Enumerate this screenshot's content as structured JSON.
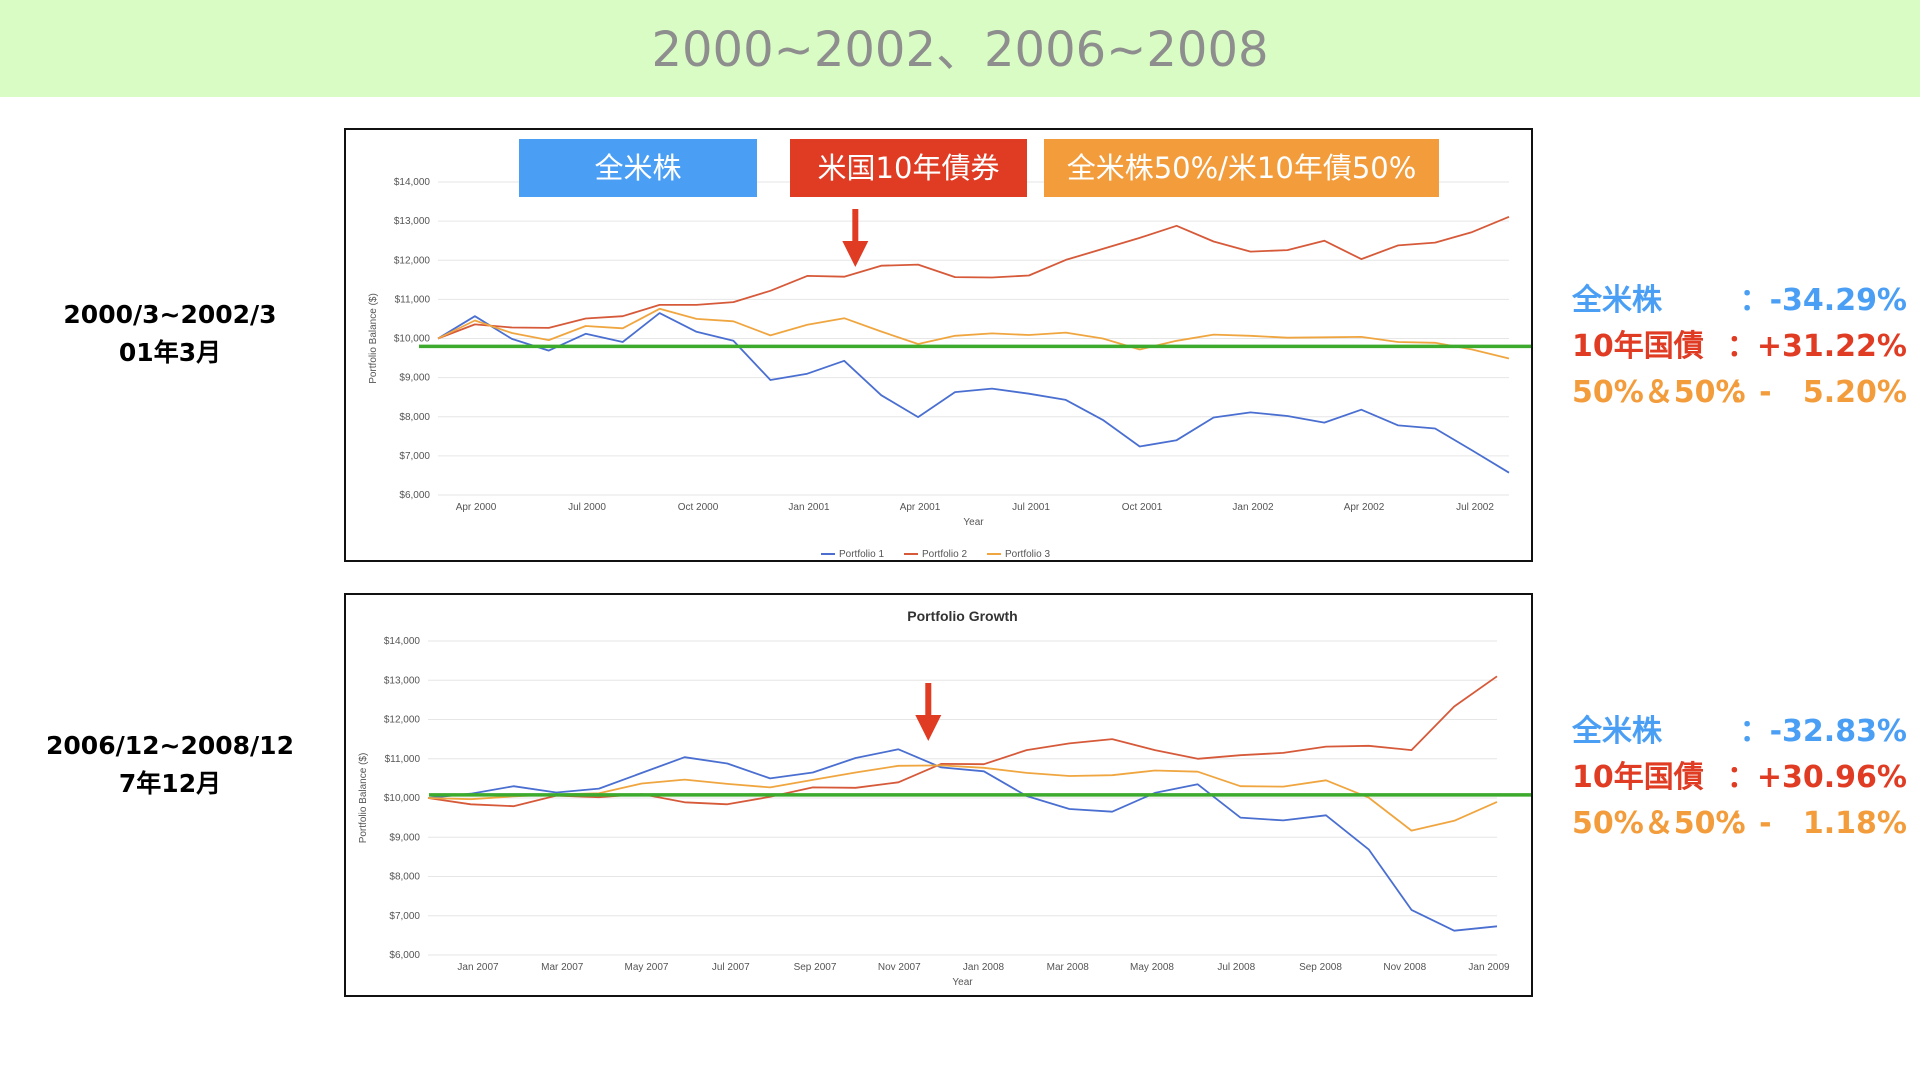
{
  "page": {
    "title": "2000~2002、2006~2008"
  },
  "colors": {
    "banner_bg": "#d9fcc5",
    "stock_blue": "#4a9ff5",
    "bond_red": "#e03c24",
    "mix_orange": "#f39c3b",
    "baseline_green": "#3caa2c",
    "line1": "#4a6fd1",
    "line2": "#d65a3a",
    "line3": "#f0a640"
  },
  "legend_boxes": [
    {
      "label": "全米株",
      "color": "#4a9ff5"
    },
    {
      "label": "米国10年債券",
      "color": "#e03c24"
    },
    {
      "label": "全米株50%/米10年債50%",
      "color": "#f39c3b"
    }
  ],
  "periods": [
    {
      "line1": "2000/3~2002/3",
      "line2": "01年3月"
    },
    {
      "line1": "2006/12~2008/12",
      "line2": "7年12月"
    }
  ],
  "stats": [
    [
      {
        "label": "全米株",
        "value": "：-34.29%",
        "color": "#4a9ff5"
      },
      {
        "label": "10年国債",
        "value": "：+31.22%",
        "color": "#e03c24"
      },
      {
        "label": "50%＆50%",
        "value": "：-   5.20%",
        "color": "#f39c3b"
      }
    ],
    [
      {
        "label": "全米株",
        "value": "：-32.83%",
        "color": "#4a9ff5"
      },
      {
        "label": "10年国債",
        "value": "：+30.96%",
        "color": "#e03c24"
      },
      {
        "label": "50%＆50%",
        "value": "：-   1.18%",
        "color": "#f39c3b"
      }
    ]
  ],
  "chart_data": [
    {
      "type": "line",
      "title": "",
      "xlabel": "Year",
      "ylabel": "Portfolio Balance ($)",
      "ylim": [
        6000,
        14000
      ],
      "yticks": [
        "$6,000",
        "$7,000",
        "$8,000",
        "$9,000",
        "$10,000",
        "$11,000",
        "$12,000",
        "$13,000",
        "$14,000"
      ],
      "xticks": [
        "Apr 2000",
        "Jul 2000",
        "Oct 2000",
        "Jan 2001",
        "Apr 2001",
        "Jul 2001",
        "Oct 2001",
        "Jan 2002",
        "Apr 2002",
        "Jul 2002"
      ],
      "legend": [
        "Portfolio 1",
        "Portfolio 2",
        "Portfolio 3"
      ],
      "baseline": 9800,
      "arrow_x": 11.3,
      "series": [
        {
          "name": "Portfolio 1",
          "values": [
            10000,
            10570,
            9990,
            9690,
            10120,
            9910,
            10650,
            10170,
            9940,
            8940,
            9100,
            9430,
            8550,
            7990,
            8630,
            8720,
            8590,
            8430,
            7920,
            7240,
            7400,
            7980,
            8110,
            8020,
            7850,
            8180,
            7780,
            7700,
            7140,
            6570
          ]
        },
        {
          "name": "Portfolio 2",
          "values": [
            10000,
            10360,
            10280,
            10270,
            10510,
            10570,
            10860,
            10860,
            10930,
            11220,
            11600,
            11580,
            11860,
            11890,
            11570,
            11560,
            11610,
            12010,
            12290,
            12570,
            12880,
            12480,
            12220,
            12260,
            12500,
            12030,
            12380,
            12450,
            12720,
            13110
          ]
        },
        {
          "name": "Portfolio 3",
          "values": [
            10000,
            10460,
            10140,
            9960,
            10320,
            10260,
            10760,
            10500,
            10440,
            10080,
            10350,
            10520,
            10180,
            9860,
            10070,
            10130,
            10090,
            10150,
            10000,
            9720,
            9940,
            10100,
            10070,
            10020,
            10030,
            10040,
            9910,
            9890,
            9720,
            9490
          ]
        }
      ]
    },
    {
      "type": "line",
      "title": "Portfolio Growth",
      "xlabel": "Year",
      "ylabel": "Portfolio Balance ($)",
      "ylim": [
        6000,
        14000
      ],
      "yticks": [
        "$6,000",
        "$7,000",
        "$8,000",
        "$9,000",
        "$10,000",
        "$11,000",
        "$12,000",
        "$13,000",
        "$14,000"
      ],
      "xticks": [
        "Jan 2007",
        "Mar 2007",
        "May 2007",
        "Jul 2007",
        "Sep 2007",
        "Nov 2007",
        "Jan 2008",
        "Mar 2008",
        "May 2008",
        "Jul 2008",
        "Sep 2008",
        "Nov 2008",
        "Jan 2009"
      ],
      "legend": [],
      "baseline": 10080,
      "arrow_x": 11.7,
      "series": [
        {
          "name": "Portfolio 1",
          "values": [
            10000,
            10110,
            10300,
            10140,
            10240,
            10640,
            11040,
            10880,
            10500,
            10650,
            11020,
            11240,
            10780,
            10680,
            10050,
            9720,
            9650,
            10130,
            10350,
            9500,
            9430,
            9560,
            8690,
            7150,
            6620,
            6730
          ]
        },
        {
          "name": "Portfolio 2",
          "values": [
            10000,
            9840,
            9790,
            10060,
            10020,
            10100,
            9890,
            9840,
            10030,
            10270,
            10260,
            10400,
            10870,
            10860,
            11220,
            11390,
            11500,
            11220,
            11000,
            11090,
            11150,
            11310,
            11330,
            11220,
            12330,
            13100
          ]
        },
        {
          "name": "Portfolio 3",
          "values": [
            10000,
            9970,
            10040,
            10090,
            10120,
            10370,
            10470,
            10360,
            10270,
            10460,
            10650,
            10820,
            10830,
            10770,
            10640,
            10560,
            10580,
            10700,
            10670,
            10300,
            10290,
            10450,
            10010,
            9170,
            9420,
            9900
          ]
        }
      ]
    }
  ]
}
